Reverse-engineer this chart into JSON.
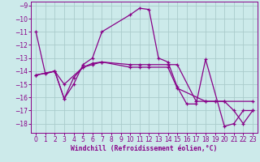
{
  "xlabel": "Windchill (Refroidissement éolien,°C)",
  "xlim": [
    -0.5,
    23.5
  ],
  "ylim": [
    -18.7,
    -8.7
  ],
  "yticks": [
    -9,
    -10,
    -11,
    -12,
    -13,
    -14,
    -15,
    -16,
    -17,
    -18
  ],
  "xticks": [
    0,
    1,
    2,
    3,
    4,
    5,
    6,
    7,
    8,
    9,
    10,
    11,
    12,
    13,
    14,
    15,
    16,
    17,
    18,
    19,
    20,
    21,
    22,
    23
  ],
  "bg_color": "#cceaea",
  "grid_color": "#aacccc",
  "line_color": "#880088",
  "line1_x": [
    0,
    1,
    2,
    3,
    4,
    5,
    6,
    7,
    10,
    11,
    12,
    13,
    14,
    15,
    16,
    17,
    18,
    20,
    21,
    22,
    23
  ],
  "line1_y": [
    -11.0,
    -14.2,
    -14.0,
    -16.1,
    -15.0,
    -13.5,
    -13.0,
    -11.0,
    -9.7,
    -9.2,
    -9.3,
    -13.0,
    -13.3,
    -15.2,
    -16.5,
    -16.5,
    -13.1,
    -18.2,
    -18.0,
    -17.0,
    -17.0
  ],
  "line2_x": [
    0,
    2,
    3,
    5,
    6,
    7,
    10,
    11,
    12,
    14,
    15,
    18,
    19,
    20,
    21,
    22,
    23
  ],
  "line2_y": [
    -14.3,
    -14.0,
    -15.0,
    -13.7,
    -13.5,
    -13.3,
    -13.7,
    -13.7,
    -13.7,
    -13.7,
    -15.3,
    -16.3,
    -16.3,
    -16.3,
    -17.0,
    -18.0,
    -17.0
  ],
  "line3_x": [
    0,
    2,
    3,
    4,
    5,
    6,
    7,
    10,
    11,
    12,
    14,
    15,
    17,
    18,
    19,
    20,
    23
  ],
  "line3_y": [
    -14.3,
    -14.0,
    -16.1,
    -14.5,
    -13.7,
    -13.4,
    -13.3,
    -13.5,
    -13.5,
    -13.5,
    -13.5,
    -13.5,
    -16.3,
    -16.3,
    -16.3,
    -16.3,
    -16.3
  ]
}
